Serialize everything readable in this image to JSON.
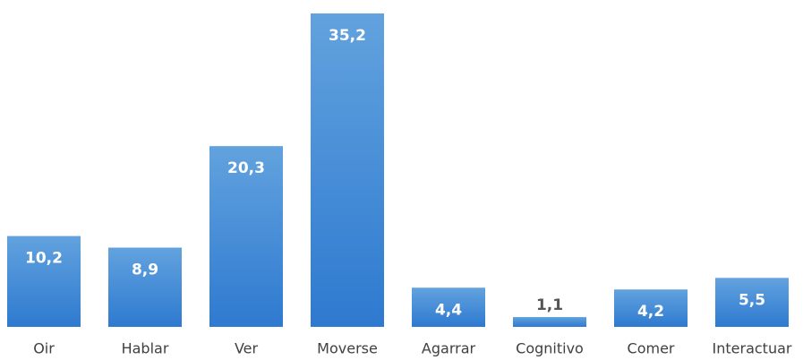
{
  "chart_data": {
    "type": "bar",
    "categories": [
      "Oir",
      "Hablar",
      "Ver",
      "Moverse",
      "Agarrar",
      "Cognitivo",
      "Comer",
      "Interactuar"
    ],
    "values": [
      10.2,
      8.9,
      20.3,
      35.2,
      4.4,
      1.1,
      4.2,
      5.5
    ],
    "value_labels": [
      "10,2",
      "8,9",
      "20,3",
      "35,2",
      "4,4",
      "1,1",
      "4,2",
      "5,5"
    ],
    "color": "#3a86d6"
  }
}
